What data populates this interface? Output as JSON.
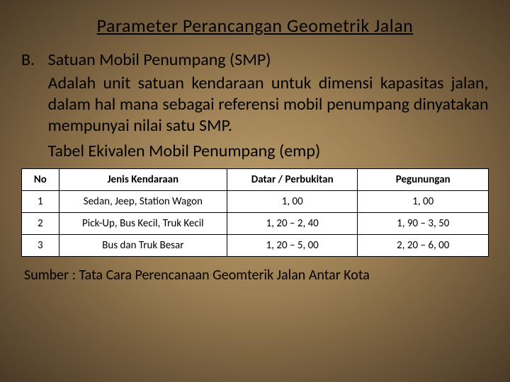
{
  "title": "Parameter Perancangan  Geometrik Jalan",
  "list_marker": "B.",
  "list_heading": "Satuan Mobil Penumpang (SMP)",
  "paragraph": "Adalah unit satuan kendaraan untuk dimensi kapasitas jalan, dalam hal mana sebagai referensi mobil penumpang dinyatakan mempunyai nilai satu SMP.",
  "table_caption": "Tabel Ekivalen Mobil Penumpang (emp)",
  "table": {
    "headers": {
      "no": "No",
      "jenis": "Jenis Kendaraan",
      "datar": "Datar / Perbukitan",
      "pegunungan": "Pegunungan"
    },
    "rows": [
      {
        "no": "1",
        "jenis": "Sedan, Jeep, Station  Wagon",
        "datar": "1, 00",
        "pegunungan": "1, 00"
      },
      {
        "no": "2",
        "jenis": "Pick-Up, Bus Kecil, Truk Kecil",
        "datar": "1, 20 –  2, 40",
        "pegunungan": "1, 90 – 3, 50"
      },
      {
        "no": "3",
        "jenis": "Bus dan Truk Besar",
        "datar": "1, 20 –  5, 00",
        "pegunungan": "2, 20 – 6, 00"
      }
    ]
  },
  "source": "Sumber : Tata Cara Perencanaan Geomterik Jalan Antar Kota",
  "styling": {
    "background_gradient": [
      "#b89a6a",
      "#9a7d52",
      "#6b5538",
      "#4a3a26"
    ],
    "text_color": "#000000",
    "table_bg": "#ffffff",
    "table_border": "#000000",
    "title_fontsize": 26,
    "body_fontsize": 24,
    "table_fontsize": 15,
    "source_fontsize": 20
  }
}
